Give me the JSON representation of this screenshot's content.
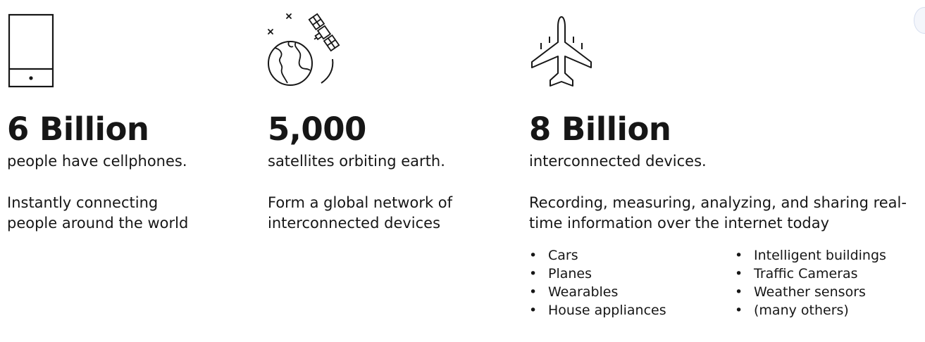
{
  "columns": [
    {
      "icon": "mobile-phone-icon",
      "stat": "6 Billion",
      "subtitle": "people have cellphones.",
      "description_lines": [
        "Instantly connecting",
        "people around the world"
      ]
    },
    {
      "icon": "satellite-earth-icon",
      "stat": "5,000",
      "subtitle": "satellites orbiting earth.",
      "description_lines": [
        "Form a global network of",
        "interconnected devices"
      ]
    },
    {
      "icon": "airplane-icon",
      "stat": "8 Billion",
      "subtitle": "interconnected devices.",
      "description_lines": [
        "Recording, measuring, analyzing, and sharing real-",
        "time information over the internet today"
      ],
      "list_left": [
        "Cars",
        "Planes",
        "Wearables",
        "House appliances"
      ],
      "list_right": [
        "Intelligent buildings",
        "Traffic Cameras",
        "Weather sensors",
        "(many others)"
      ]
    }
  ],
  "colors": {
    "text": "#161616",
    "background": "#ffffff"
  }
}
